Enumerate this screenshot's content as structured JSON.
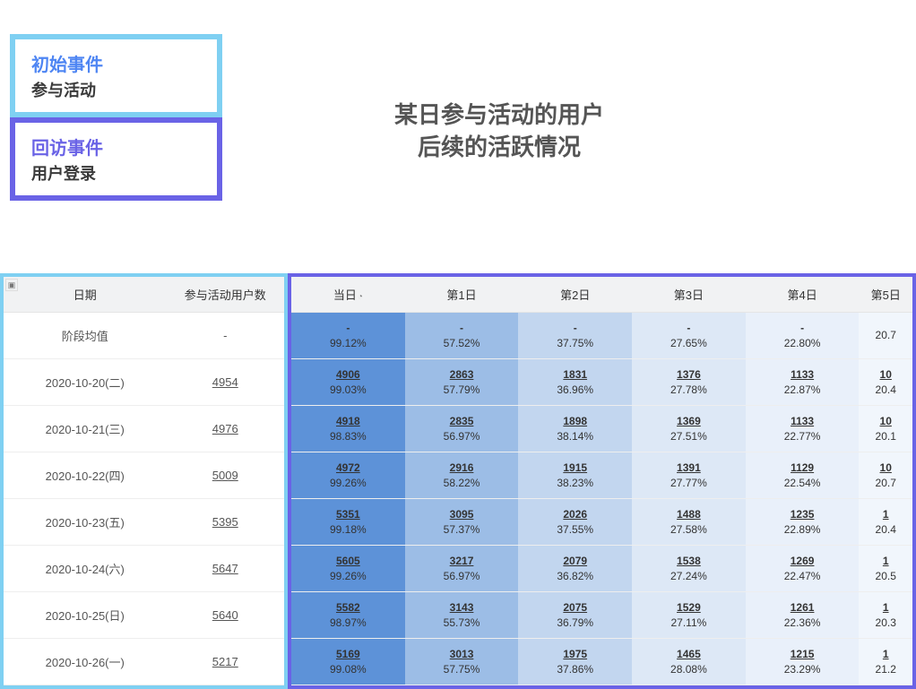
{
  "colors": {
    "initial_border": "#7fd0f2",
    "return_border": "#6a63e6",
    "initial_title": "#4f86f3",
    "return_title": "#6a63e6",
    "heading_text": "#555555",
    "header_bg": "#f1f2f3",
    "cell_text": "#333333"
  },
  "cards": {
    "initial": {
      "title": "初始事件",
      "subtitle": "参与活动"
    },
    "return": {
      "title": "回访事件",
      "subtitle": "用户登录"
    }
  },
  "heading": {
    "line1": "某日参与活动的用户",
    "line2": "后续的活跃情况",
    "fontsize": 26
  },
  "left_table": {
    "columns": [
      "日期",
      "参与活动用户数"
    ],
    "rows": [
      {
        "date": "阶段均值",
        "count": "-"
      },
      {
        "date": "2020-10-20(二)",
        "count": "4954"
      },
      {
        "date": "2020-10-21(三)",
        "count": "4976"
      },
      {
        "date": "2020-10-22(四)",
        "count": "5009"
      },
      {
        "date": "2020-10-23(五)",
        "count": "5395"
      },
      {
        "date": "2020-10-24(六)",
        "count": "5647"
      },
      {
        "date": "2020-10-25(日)",
        "count": "5640"
      },
      {
        "date": "2020-10-26(一)",
        "count": "5217"
      }
    ]
  },
  "right_table": {
    "columns": [
      "当日",
      "第1日",
      "第2日",
      "第3日",
      "第4日",
      "第5日"
    ],
    "clock_on_first_col": true,
    "heat_palette": {
      "99": "#5d92d8",
      "57": "#9cbde6",
      "37": "#c2d6ef",
      "27": "#dde8f6",
      "22": "#e9f0fa",
      "20": "#f1f6fc"
    },
    "rows": [
      {
        "cells": [
          {
            "num": "-",
            "pct": "99.12%",
            "shade": "#5d92d8"
          },
          {
            "num": "-",
            "pct": "57.52%",
            "shade": "#9cbde6"
          },
          {
            "num": "-",
            "pct": "37.75%",
            "shade": "#c2d6ef"
          },
          {
            "num": "-",
            "pct": "27.65%",
            "shade": "#dde8f6"
          },
          {
            "num": "-",
            "pct": "22.80%",
            "shade": "#e9f0fa"
          },
          {
            "num": "",
            "pct": "20.7",
            "shade": "#f1f6fc"
          }
        ]
      },
      {
        "cells": [
          {
            "num": "4906",
            "pct": "99.03%",
            "shade": "#5d92d8"
          },
          {
            "num": "2863",
            "pct": "57.79%",
            "shade": "#9cbde6"
          },
          {
            "num": "1831",
            "pct": "36.96%",
            "shade": "#c2d6ef"
          },
          {
            "num": "1376",
            "pct": "27.78%",
            "shade": "#dde8f6"
          },
          {
            "num": "1133",
            "pct": "22.87%",
            "shade": "#e9f0fa"
          },
          {
            "num": "10",
            "pct": "20.4",
            "shade": "#f1f6fc"
          }
        ]
      },
      {
        "cells": [
          {
            "num": "4918",
            "pct": "98.83%",
            "shade": "#5d92d8"
          },
          {
            "num": "2835",
            "pct": "56.97%",
            "shade": "#9cbde6"
          },
          {
            "num": "1898",
            "pct": "38.14%",
            "shade": "#c2d6ef"
          },
          {
            "num": "1369",
            "pct": "27.51%",
            "shade": "#dde8f6"
          },
          {
            "num": "1133",
            "pct": "22.77%",
            "shade": "#e9f0fa"
          },
          {
            "num": "10",
            "pct": "20.1",
            "shade": "#f1f6fc"
          }
        ]
      },
      {
        "cells": [
          {
            "num": "4972",
            "pct": "99.26%",
            "shade": "#5d92d8"
          },
          {
            "num": "2916",
            "pct": "58.22%",
            "shade": "#9cbde6"
          },
          {
            "num": "1915",
            "pct": "38.23%",
            "shade": "#c2d6ef"
          },
          {
            "num": "1391",
            "pct": "27.77%",
            "shade": "#dde8f6"
          },
          {
            "num": "1129",
            "pct": "22.54%",
            "shade": "#e9f0fa"
          },
          {
            "num": "10",
            "pct": "20.7",
            "shade": "#f1f6fc"
          }
        ]
      },
      {
        "cells": [
          {
            "num": "5351",
            "pct": "99.18%",
            "shade": "#5d92d8"
          },
          {
            "num": "3095",
            "pct": "57.37%",
            "shade": "#9cbde6"
          },
          {
            "num": "2026",
            "pct": "37.55%",
            "shade": "#c2d6ef"
          },
          {
            "num": "1488",
            "pct": "27.58%",
            "shade": "#dde8f6"
          },
          {
            "num": "1235",
            "pct": "22.89%",
            "shade": "#e9f0fa"
          },
          {
            "num": "1",
            "pct": "20.4",
            "shade": "#f1f6fc"
          }
        ]
      },
      {
        "cells": [
          {
            "num": "5605",
            "pct": "99.26%",
            "shade": "#5d92d8"
          },
          {
            "num": "3217",
            "pct": "56.97%",
            "shade": "#9cbde6"
          },
          {
            "num": "2079",
            "pct": "36.82%",
            "shade": "#c2d6ef"
          },
          {
            "num": "1538",
            "pct": "27.24%",
            "shade": "#dde8f6"
          },
          {
            "num": "1269",
            "pct": "22.47%",
            "shade": "#e9f0fa"
          },
          {
            "num": "1",
            "pct": "20.5",
            "shade": "#f1f6fc"
          }
        ]
      },
      {
        "cells": [
          {
            "num": "5582",
            "pct": "98.97%",
            "shade": "#5d92d8"
          },
          {
            "num": "3143",
            "pct": "55.73%",
            "shade": "#9cbde6"
          },
          {
            "num": "2075",
            "pct": "36.79%",
            "shade": "#c2d6ef"
          },
          {
            "num": "1529",
            "pct": "27.11%",
            "shade": "#dde8f6"
          },
          {
            "num": "1261",
            "pct": "22.36%",
            "shade": "#e9f0fa"
          },
          {
            "num": "1",
            "pct": "20.3",
            "shade": "#f1f6fc"
          }
        ]
      },
      {
        "cells": [
          {
            "num": "5169",
            "pct": "99.08%",
            "shade": "#5d92d8"
          },
          {
            "num": "3013",
            "pct": "57.75%",
            "shade": "#9cbde6"
          },
          {
            "num": "1975",
            "pct": "37.86%",
            "shade": "#c2d6ef"
          },
          {
            "num": "1465",
            "pct": "28.08%",
            "shade": "#dde8f6"
          },
          {
            "num": "1215",
            "pct": "23.29%",
            "shade": "#e9f0fa"
          },
          {
            "num": "1",
            "pct": "21.2",
            "shade": "#f1f6fc"
          }
        ]
      }
    ]
  }
}
